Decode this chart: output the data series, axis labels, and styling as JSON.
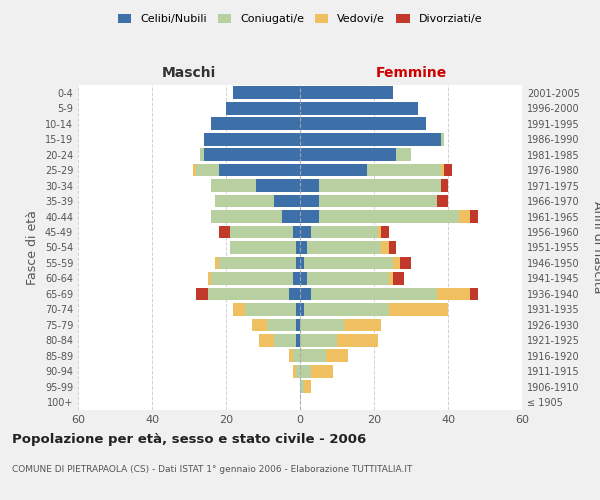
{
  "age_groups": [
    "100+",
    "95-99",
    "90-94",
    "85-89",
    "80-84",
    "75-79",
    "70-74",
    "65-69",
    "60-64",
    "55-59",
    "50-54",
    "45-49",
    "40-44",
    "35-39",
    "30-34",
    "25-29",
    "20-24",
    "15-19",
    "10-14",
    "5-9",
    "0-4"
  ],
  "birth_years": [
    "≤ 1905",
    "1906-1910",
    "1911-1915",
    "1916-1920",
    "1921-1925",
    "1926-1930",
    "1931-1935",
    "1936-1940",
    "1941-1945",
    "1946-1950",
    "1951-1955",
    "1956-1960",
    "1961-1965",
    "1966-1970",
    "1971-1975",
    "1976-1980",
    "1981-1985",
    "1986-1990",
    "1991-1995",
    "1996-2000",
    "2001-2005"
  ],
  "colors": {
    "celibi": "#3d6fa8",
    "coniugati": "#b8cfa0",
    "vedovi": "#f0c060",
    "divorziati": "#c0392b"
  },
  "maschi": {
    "celibi": [
      0,
      0,
      0,
      0,
      1,
      1,
      1,
      3,
      2,
      1,
      1,
      2,
      5,
      7,
      12,
      22,
      26,
      26,
      24,
      20,
      18
    ],
    "coniugati": [
      0,
      0,
      1,
      2,
      6,
      8,
      14,
      22,
      22,
      21,
      18,
      17,
      19,
      16,
      12,
      6,
      1,
      0,
      0,
      0,
      0
    ],
    "vedovi": [
      0,
      0,
      1,
      1,
      4,
      4,
      3,
      0,
      1,
      1,
      0,
      0,
      0,
      0,
      0,
      1,
      0,
      0,
      0,
      0,
      0
    ],
    "divorziati": [
      0,
      0,
      0,
      0,
      0,
      0,
      0,
      3,
      0,
      0,
      0,
      3,
      0,
      0,
      0,
      0,
      0,
      0,
      0,
      0,
      0
    ]
  },
  "femmine": {
    "nubili": [
      0,
      0,
      0,
      0,
      0,
      0,
      1,
      3,
      2,
      1,
      2,
      3,
      5,
      5,
      5,
      18,
      26,
      38,
      34,
      32,
      25
    ],
    "coniugate": [
      0,
      1,
      3,
      7,
      10,
      12,
      23,
      34,
      22,
      24,
      20,
      18,
      38,
      32,
      33,
      20,
      4,
      1,
      0,
      0,
      0
    ],
    "vedove": [
      0,
      2,
      6,
      6,
      11,
      10,
      16,
      9,
      1,
      2,
      2,
      1,
      3,
      0,
      0,
      1,
      0,
      0,
      0,
      0,
      0
    ],
    "divorziate": [
      0,
      0,
      0,
      0,
      0,
      0,
      0,
      2,
      3,
      3,
      2,
      2,
      2,
      3,
      2,
      2,
      0,
      0,
      0,
      0,
      0
    ]
  },
  "xlim": 60,
  "title": "Popolazione per età, sesso e stato civile - 2006",
  "subtitle": "COMUNE DI PIETRAPAOLA (CS) - Dati ISTAT 1° gennaio 2006 - Elaborazione TUTTITALIA.IT",
  "ylabel_left": "Fasce di età",
  "ylabel_right": "Anni di nascita",
  "xlabel_left": "Maschi",
  "xlabel_right": "Femmine",
  "bg_color": "#f0f0f0",
  "plot_bg_color": "#ffffff",
  "grid_color": "#cccccc"
}
